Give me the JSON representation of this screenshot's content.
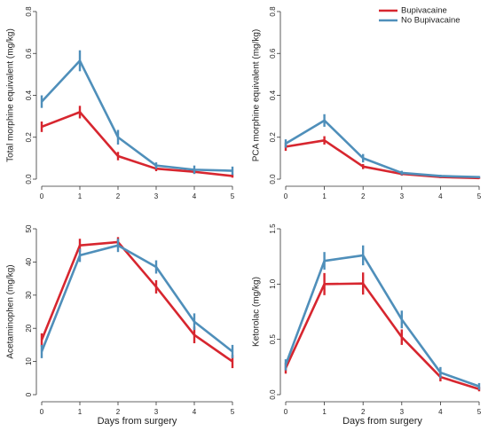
{
  "colors": {
    "bupivacaine": "#d7262f",
    "no_bupivacaine": "#4f8fba"
  },
  "legend": {
    "placement": "top-right",
    "entries": [
      {
        "label": "Bupivacaine",
        "color": "#d7262f"
      },
      {
        "label": "No Bupivacaine",
        "color": "#4f8fba"
      }
    ]
  },
  "chart_data": [
    {
      "type": "line",
      "title": "",
      "xlabel": "",
      "ylabel": "Total morphine equivalent (mg/kg)",
      "x": [
        0,
        1,
        2,
        3,
        4,
        5
      ],
      "xlim": [
        0,
        5
      ],
      "ylim": [
        0,
        0.8
      ],
      "yticks": [
        "0.0",
        "0.2",
        "0.4",
        "0.6",
        "0.8"
      ],
      "series": [
        {
          "name": "Bupivacaine",
          "color": "#d7262f",
          "values": [
            0.25,
            0.32,
            0.11,
            0.05,
            0.035,
            0.015
          ],
          "err": [
            0.025,
            0.03,
            0.02,
            0.012,
            0.01,
            0.008
          ]
        },
        {
          "name": "No Bupivacaine",
          "color": "#4f8fba",
          "values": [
            0.37,
            0.565,
            0.2,
            0.065,
            0.045,
            0.04
          ],
          "err": [
            0.03,
            0.05,
            0.035,
            0.015,
            0.02,
            0.02
          ]
        }
      ]
    },
    {
      "type": "line",
      "title": "",
      "xlabel": "",
      "ylabel": "PCA morphine equivalent (mg/kg)",
      "x": [
        0,
        1,
        2,
        3,
        4,
        5
      ],
      "xlim": [
        0,
        5
      ],
      "ylim": [
        0,
        0.8
      ],
      "yticks": [
        "0.0",
        "0.2",
        "0.4",
        "0.6",
        "0.8"
      ],
      "series": [
        {
          "name": "Bupivacaine",
          "color": "#d7262f",
          "values": [
            0.155,
            0.185,
            0.06,
            0.025,
            0.01,
            0.005
          ],
          "err": [
            0.02,
            0.02,
            0.012,
            0.008,
            0.005,
            0.004
          ]
        },
        {
          "name": "No Bupivacaine",
          "color": "#4f8fba",
          "values": [
            0.17,
            0.28,
            0.1,
            0.03,
            0.015,
            0.01
          ],
          "err": [
            0.02,
            0.03,
            0.02,
            0.01,
            0.006,
            0.005
          ]
        }
      ]
    },
    {
      "type": "line",
      "title": "",
      "xlabel": "Days from surgery",
      "ylabel": "Acetaminophen (mg/kg)",
      "x": [
        0,
        1,
        2,
        3,
        4,
        5
      ],
      "xlim": [
        0,
        5
      ],
      "ylim": [
        0,
        50
      ],
      "yticks": [
        "0",
        "10",
        "20",
        "30",
        "40",
        "50"
      ],
      "series": [
        {
          "name": "Bupivacaine",
          "color": "#d7262f",
          "values": [
            16.5,
            45,
            46,
            32.5,
            18,
            10
          ],
          "err": [
            2,
            2,
            1.5,
            2,
            2.5,
            2
          ]
        },
        {
          "name": "No Bupivacaine",
          "color": "#4f8fba",
          "values": [
            13,
            42,
            45,
            38.5,
            22,
            13
          ],
          "err": [
            2,
            2,
            2,
            2,
            2.5,
            2
          ]
        }
      ]
    },
    {
      "type": "line",
      "title": "",
      "xlabel": "Days from surgery",
      "ylabel": "Ketorolac (mg/kg)",
      "x": [
        0,
        1,
        2,
        3,
        4,
        5
      ],
      "xlim": [
        0,
        5
      ],
      "ylim": [
        0,
        1.5
      ],
      "yticks": [
        "0.0",
        "0.5",
        "1.0",
        "1.5"
      ],
      "series": [
        {
          "name": "Bupivacaine",
          "color": "#d7262f",
          "values": [
            0.24,
            1.0,
            1.005,
            0.52,
            0.16,
            0.05
          ],
          "err": [
            0.05,
            0.1,
            0.1,
            0.07,
            0.04,
            0.02
          ]
        },
        {
          "name": "No Bupivacaine",
          "color": "#4f8fba",
          "values": [
            0.27,
            1.21,
            1.26,
            0.68,
            0.2,
            0.075
          ],
          "err": [
            0.05,
            0.08,
            0.09,
            0.08,
            0.05,
            0.03
          ]
        }
      ]
    }
  ]
}
